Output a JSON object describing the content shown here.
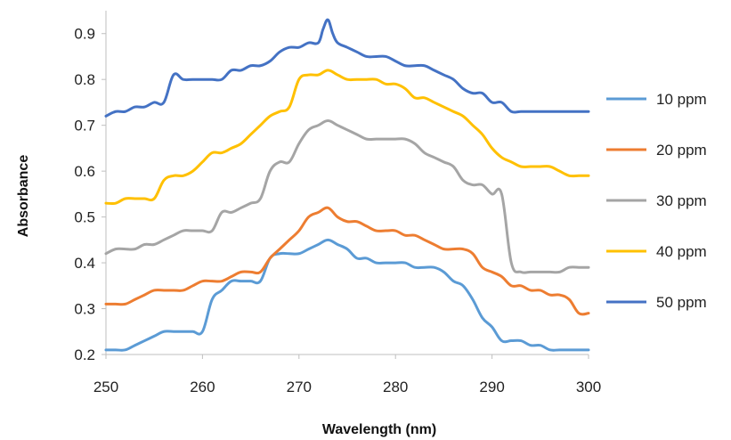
{
  "chart_data": {
    "type": "line",
    "title": "",
    "xlabel": "Wavelength (nm)",
    "ylabel": "Absorbance",
    "xlim": [
      250,
      300
    ],
    "ylim": [
      0.2,
      0.95
    ],
    "xticks": [
      250,
      260,
      270,
      280,
      290,
      300
    ],
    "yticks": [
      0.2,
      0.3,
      0.4,
      0.5,
      0.6,
      0.7,
      0.8,
      0.9
    ],
    "ytick_labels": [
      "0.2",
      "0.3",
      "0.4",
      "0.5",
      "0.6",
      "0.7",
      "0.8",
      "0.9"
    ],
    "grid": false,
    "legend_position": "right",
    "series": [
      {
        "name": "10 ppm",
        "color": "#5B9BD5",
        "x": [
          250,
          251,
          252,
          253,
          254,
          255,
          256,
          257,
          258,
          259,
          260,
          261,
          262,
          263,
          264,
          265,
          266,
          267,
          268,
          269,
          270,
          271,
          272,
          273,
          274,
          275,
          276,
          277,
          278,
          279,
          280,
          281,
          282,
          283,
          284,
          285,
          286,
          287,
          288,
          289,
          290,
          291,
          292,
          293,
          294,
          295,
          296,
          297,
          298,
          299,
          300
        ],
        "y": [
          0.21,
          0.21,
          0.21,
          0.22,
          0.23,
          0.24,
          0.25,
          0.25,
          0.25,
          0.25,
          0.25,
          0.32,
          0.34,
          0.36,
          0.36,
          0.36,
          0.36,
          0.41,
          0.42,
          0.42,
          0.42,
          0.43,
          0.44,
          0.45,
          0.44,
          0.43,
          0.41,
          0.41,
          0.4,
          0.4,
          0.4,
          0.4,
          0.39,
          0.39,
          0.39,
          0.38,
          0.36,
          0.35,
          0.32,
          0.28,
          0.26,
          0.23,
          0.23,
          0.23,
          0.22,
          0.22,
          0.21,
          0.21,
          0.21,
          0.21,
          0.21
        ]
      },
      {
        "name": "20 ppm",
        "color": "#ED7D31",
        "x": [
          250,
          251,
          252,
          253,
          254,
          255,
          256,
          257,
          258,
          259,
          260,
          261,
          262,
          263,
          264,
          265,
          266,
          267,
          268,
          269,
          270,
          271,
          272,
          273,
          274,
          275,
          276,
          277,
          278,
          279,
          280,
          281,
          282,
          283,
          284,
          285,
          286,
          287,
          288,
          289,
          290,
          291,
          292,
          293,
          294,
          295,
          296,
          297,
          298,
          299,
          300
        ],
        "y": [
          0.31,
          0.31,
          0.31,
          0.32,
          0.33,
          0.34,
          0.34,
          0.34,
          0.34,
          0.35,
          0.36,
          0.36,
          0.36,
          0.37,
          0.38,
          0.38,
          0.38,
          0.41,
          0.43,
          0.45,
          0.47,
          0.5,
          0.51,
          0.52,
          0.5,
          0.49,
          0.49,
          0.48,
          0.47,
          0.47,
          0.47,
          0.46,
          0.46,
          0.45,
          0.44,
          0.43,
          0.43,
          0.43,
          0.42,
          0.39,
          0.38,
          0.37,
          0.35,
          0.35,
          0.34,
          0.34,
          0.33,
          0.33,
          0.32,
          0.29,
          0.29
        ]
      },
      {
        "name": "30 ppm",
        "color": "#A5A5A5",
        "x": [
          250,
          251,
          252,
          253,
          254,
          255,
          256,
          257,
          258,
          259,
          260,
          261,
          262,
          263,
          264,
          265,
          266,
          267,
          268,
          269,
          270,
          271,
          272,
          273,
          274,
          275,
          276,
          277,
          278,
          279,
          280,
          281,
          282,
          283,
          284,
          285,
          286,
          287,
          288,
          289,
          290,
          291,
          292,
          293,
          294,
          295,
          296,
          297,
          298,
          299,
          300
        ],
        "y": [
          0.42,
          0.43,
          0.43,
          0.43,
          0.44,
          0.44,
          0.45,
          0.46,
          0.47,
          0.47,
          0.47,
          0.47,
          0.51,
          0.51,
          0.52,
          0.53,
          0.54,
          0.6,
          0.62,
          0.62,
          0.66,
          0.69,
          0.7,
          0.71,
          0.7,
          0.69,
          0.68,
          0.67,
          0.67,
          0.67,
          0.67,
          0.67,
          0.66,
          0.64,
          0.63,
          0.62,
          0.61,
          0.58,
          0.57,
          0.57,
          0.55,
          0.55,
          0.4,
          0.38,
          0.38,
          0.38,
          0.38,
          0.38,
          0.39,
          0.39,
          0.39
        ]
      },
      {
        "name": "40 ppm",
        "color": "#FFC000",
        "x": [
          250,
          251,
          252,
          253,
          254,
          255,
          256,
          257,
          258,
          259,
          260,
          261,
          262,
          263,
          264,
          265,
          266,
          267,
          268,
          269,
          270,
          271,
          272,
          273,
          274,
          275,
          276,
          277,
          278,
          279,
          280,
          281,
          282,
          283,
          284,
          285,
          286,
          287,
          288,
          289,
          290,
          291,
          292,
          293,
          294,
          295,
          296,
          297,
          298,
          299,
          300
        ],
        "y": [
          0.53,
          0.53,
          0.54,
          0.54,
          0.54,
          0.54,
          0.58,
          0.59,
          0.59,
          0.6,
          0.62,
          0.64,
          0.64,
          0.65,
          0.66,
          0.68,
          0.7,
          0.72,
          0.73,
          0.74,
          0.8,
          0.81,
          0.81,
          0.82,
          0.81,
          0.8,
          0.8,
          0.8,
          0.8,
          0.79,
          0.79,
          0.78,
          0.76,
          0.76,
          0.75,
          0.74,
          0.73,
          0.72,
          0.7,
          0.68,
          0.65,
          0.63,
          0.62,
          0.61,
          0.61,
          0.61,
          0.61,
          0.6,
          0.59,
          0.59,
          0.59
        ]
      },
      {
        "name": "50 ppm",
        "color": "#4472C4",
        "x": [
          250,
          251,
          252,
          253,
          254,
          255,
          256,
          257,
          258,
          259,
          260,
          261,
          262,
          263,
          264,
          265,
          266,
          267,
          268,
          269,
          270,
          271,
          272,
          272.5,
          273,
          273.5,
          274,
          275,
          276,
          277,
          278,
          279,
          280,
          281,
          282,
          283,
          284,
          285,
          286,
          287,
          288,
          289,
          290,
          291,
          292,
          293,
          294,
          295,
          296,
          297,
          298,
          299,
          300
        ],
        "y": [
          0.72,
          0.73,
          0.73,
          0.74,
          0.74,
          0.75,
          0.75,
          0.81,
          0.8,
          0.8,
          0.8,
          0.8,
          0.8,
          0.82,
          0.82,
          0.83,
          0.83,
          0.84,
          0.86,
          0.87,
          0.87,
          0.88,
          0.88,
          0.91,
          0.93,
          0.9,
          0.88,
          0.87,
          0.86,
          0.85,
          0.85,
          0.85,
          0.84,
          0.83,
          0.83,
          0.83,
          0.82,
          0.81,
          0.8,
          0.78,
          0.77,
          0.77,
          0.75,
          0.75,
          0.73,
          0.73,
          0.73,
          0.73,
          0.73,
          0.73,
          0.73,
          0.73,
          0.73
        ]
      }
    ]
  }
}
